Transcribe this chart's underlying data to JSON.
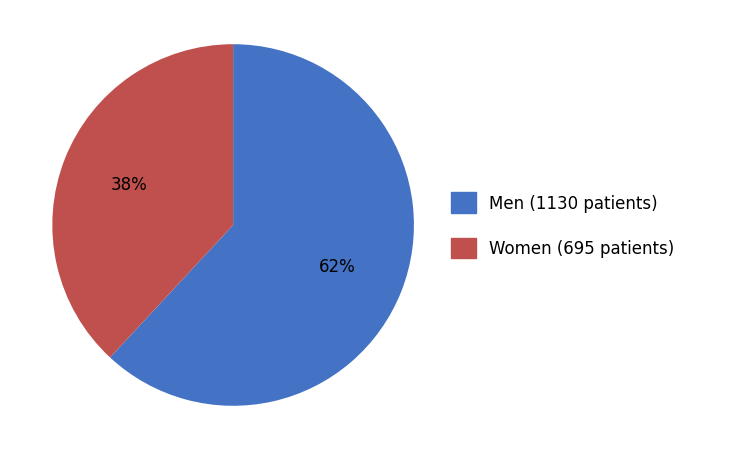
{
  "slices": [
    1130,
    695
  ],
  "labels": [
    "62%",
    "38%"
  ],
  "colors": [
    "#4472C4",
    "#C0504D"
  ],
  "legend_labels": [
    "Men (1130 patients)",
    "Women (695 patients)"
  ],
  "startangle": 90,
  "background_color": "#ffffff",
  "text_color": "#000000",
  "autopct_fontsize": 12,
  "legend_fontsize": 12
}
